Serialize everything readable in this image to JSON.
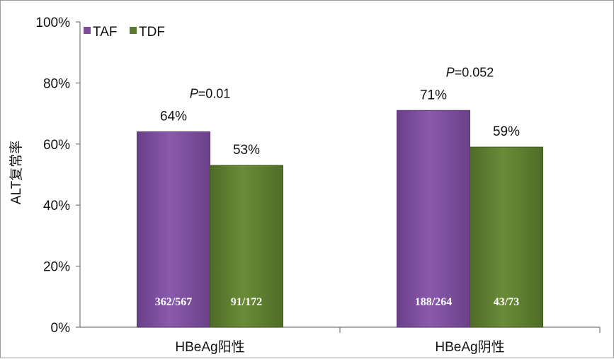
{
  "chart_data": {
    "type": "bar",
    "ylabel": "ALT复常率",
    "ylim": [
      0,
      100
    ],
    "yticks": [
      "0%",
      "20%",
      "40%",
      "60%",
      "80%",
      "100%"
    ],
    "categories": [
      "HBeAg阳性",
      "HBeAg阴性"
    ],
    "series": [
      {
        "name": "TAF",
        "color": "#7b4f9a",
        "values": [
          64,
          71
        ],
        "labels": [
          "64%",
          "71%"
        ],
        "counts": [
          "362/567",
          "188/264"
        ]
      },
      {
        "name": "TDF",
        "color": "#5a7a2e",
        "values": [
          53,
          59
        ],
        "labels": [
          "53%",
          "59%"
        ],
        "counts": [
          "91/172",
          "43/73"
        ]
      }
    ],
    "annotations": [
      {
        "category": "HBeAg阳性",
        "p_prefix": "P",
        "p_value": "=0.01"
      },
      {
        "category": "HBeAg阴性",
        "p_prefix": "P",
        "p_value": "=0.052"
      }
    ],
    "grid": false,
    "legend": "top-left"
  }
}
